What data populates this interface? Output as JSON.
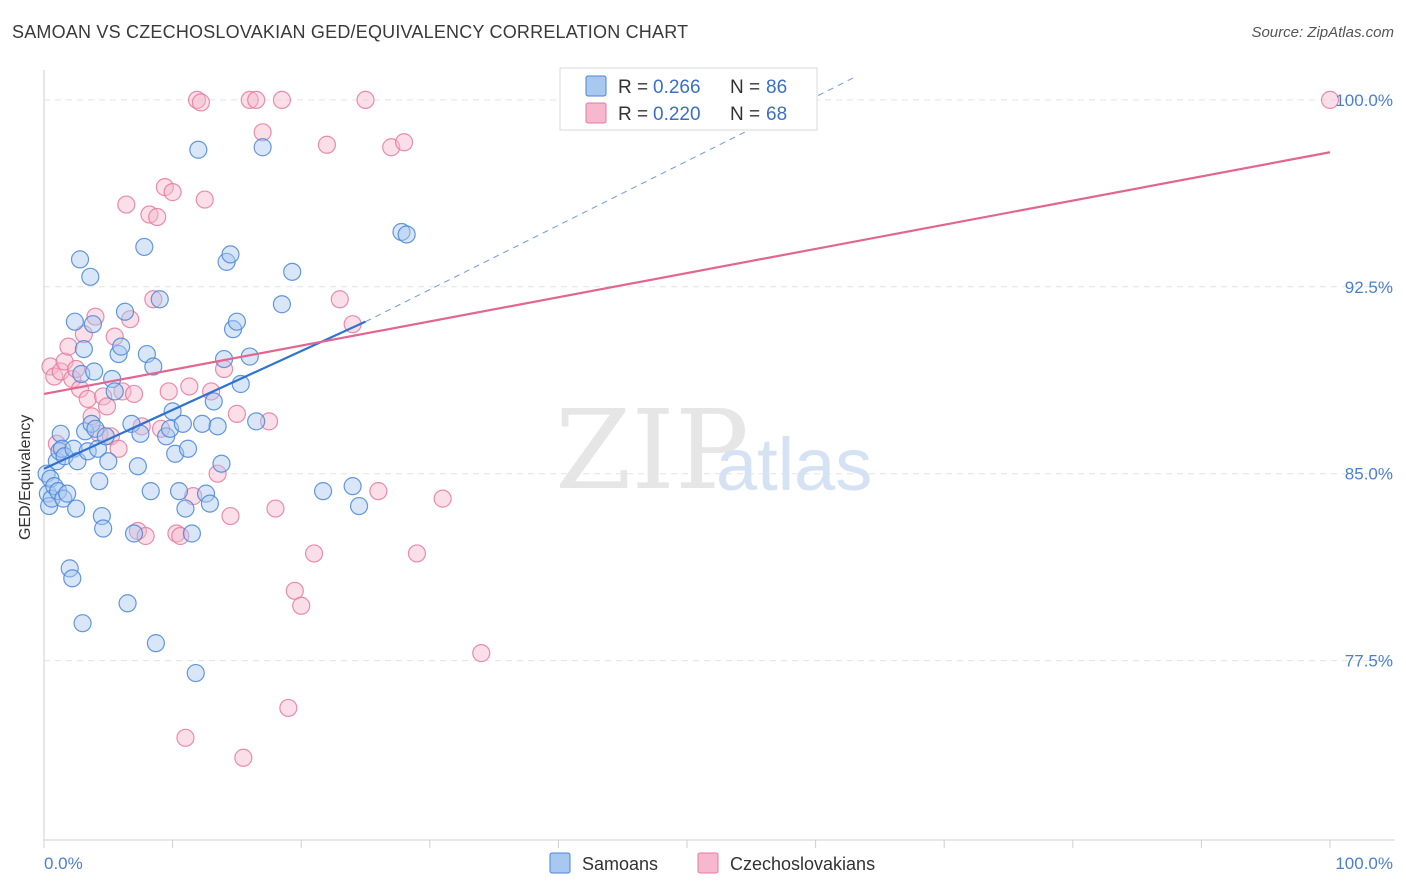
{
  "title": "SAMOAN VS CZECHOSLOVAKIAN GED/EQUIVALENCY CORRELATION CHART",
  "source": "Source: ZipAtlas.com",
  "watermark": {
    "zip": "ZIP",
    "atlas": "atlas"
  },
  "colors": {
    "blue_fill": "#a9c8f0",
    "blue_stroke": "#4a86d8",
    "blue_line": "#2f72cf",
    "pink_fill": "#f5b8cc",
    "pink_stroke": "#e8799d",
    "pink_line": "#e26690",
    "tick_text": "#4a7fd0",
    "grid": "#e3e3e3"
  },
  "legend": {
    "rows": [
      {
        "r_label": "R = ",
        "r_value": "0.266",
        "n_label": "N = ",
        "n_value": "86",
        "series": "blue"
      },
      {
        "r_label": "R = ",
        "r_value": "0.220",
        "n_label": "N = ",
        "n_value": "68",
        "series": "pink"
      }
    ]
  },
  "chart_data": {
    "type": "scatter",
    "title": "SAMOAN VS CZECHOSLOVAKIAN GED/EQUIVALENCY CORRELATION CHART",
    "xlabel": "",
    "ylabel": "GED/Equivalency",
    "xlim": [
      0,
      100
    ],
    "ylim": [
      70.3,
      101.2
    ],
    "x_tick_labels": [
      "0.0%",
      "100.0%"
    ],
    "y_ticks": [
      77.5,
      85.0,
      92.5,
      100.0
    ],
    "y_tick_labels": [
      "77.5%",
      "85.0%",
      "92.5%",
      "100.0%"
    ],
    "grid": true,
    "series": [
      {
        "name": "Samoans",
        "color": "blue",
        "r": 0.266,
        "n": 86,
        "trend": {
          "x0": 0,
          "y0": 85.2,
          "x1": 25,
          "y1": 91.1,
          "dash_to_x": 63,
          "dash_to_y": 100.9
        },
        "points": [
          [
            0.2,
            85.0
          ],
          [
            0.3,
            84.2
          ],
          [
            0.4,
            83.7
          ],
          [
            0.5,
            84.8
          ],
          [
            0.6,
            84.0
          ],
          [
            0.8,
            84.5
          ],
          [
            1.0,
            85.5
          ],
          [
            1.1,
            84.3
          ],
          [
            1.2,
            85.9
          ],
          [
            1.3,
            86.6
          ],
          [
            1.4,
            86.0
          ],
          [
            1.5,
            84.0
          ],
          [
            1.6,
            85.7
          ],
          [
            1.8,
            84.2
          ],
          [
            2.0,
            81.2
          ],
          [
            2.2,
            80.8
          ],
          [
            2.3,
            86.0
          ],
          [
            2.4,
            91.1
          ],
          [
            2.5,
            83.6
          ],
          [
            2.6,
            85.5
          ],
          [
            2.8,
            93.6
          ],
          [
            2.9,
            89.0
          ],
          [
            3.0,
            79.0
          ],
          [
            3.1,
            90.0
          ],
          [
            3.2,
            86.7
          ],
          [
            3.4,
            85.9
          ],
          [
            3.6,
            92.9
          ],
          [
            3.7,
            87.0
          ],
          [
            3.8,
            91.0
          ],
          [
            3.9,
            89.1
          ],
          [
            4.0,
            86.8
          ],
          [
            4.2,
            86.0
          ],
          [
            4.3,
            84.7
          ],
          [
            4.5,
            83.3
          ],
          [
            4.6,
            82.8
          ],
          [
            4.8,
            86.5
          ],
          [
            5.0,
            85.5
          ],
          [
            5.3,
            88.8
          ],
          [
            5.5,
            88.3
          ],
          [
            5.8,
            89.8
          ],
          [
            6.0,
            90.1
          ],
          [
            6.3,
            91.5
          ],
          [
            6.5,
            79.8
          ],
          [
            6.8,
            87.0
          ],
          [
            7.0,
            82.6
          ],
          [
            7.3,
            85.3
          ],
          [
            7.5,
            86.6
          ],
          [
            7.8,
            94.1
          ],
          [
            8.0,
            89.8
          ],
          [
            8.3,
            84.3
          ],
          [
            8.5,
            89.3
          ],
          [
            8.7,
            78.2
          ],
          [
            9.0,
            92.0
          ],
          [
            9.5,
            86.5
          ],
          [
            9.8,
            86.8
          ],
          [
            10.0,
            87.5
          ],
          [
            10.2,
            85.8
          ],
          [
            10.5,
            84.3
          ],
          [
            10.8,
            87.0
          ],
          [
            11.0,
            83.6
          ],
          [
            11.2,
            86.0
          ],
          [
            11.5,
            82.6
          ],
          [
            11.8,
            77.0
          ],
          [
            12.0,
            98.0
          ],
          [
            12.3,
            87.0
          ],
          [
            12.6,
            84.2
          ],
          [
            12.9,
            83.8
          ],
          [
            13.2,
            87.9
          ],
          [
            13.5,
            86.9
          ],
          [
            13.8,
            85.4
          ],
          [
            14.0,
            89.6
          ],
          [
            14.2,
            93.5
          ],
          [
            14.5,
            93.8
          ],
          [
            14.7,
            90.8
          ],
          [
            15.0,
            91.1
          ],
          [
            15.3,
            88.6
          ],
          [
            16.0,
            89.7
          ],
          [
            16.5,
            87.1
          ],
          [
            17.0,
            98.1
          ],
          [
            18.5,
            91.8
          ],
          [
            19.3,
            93.1
          ],
          [
            21.7,
            84.3
          ],
          [
            24.0,
            84.5
          ],
          [
            24.5,
            83.7
          ],
          [
            27.8,
            94.7
          ],
          [
            28.2,
            94.6
          ]
        ]
      },
      {
        "name": "Czechoslovakians",
        "color": "pink",
        "r": 0.22,
        "n": 68,
        "trend": {
          "x0": 0,
          "y0": 88.2,
          "x1": 100,
          "y1": 97.9
        },
        "points": [
          [
            0.5,
            89.3
          ],
          [
            0.8,
            88.9
          ],
          [
            1.0,
            86.2
          ],
          [
            1.3,
            89.1
          ],
          [
            1.6,
            89.5
          ],
          [
            1.9,
            90.1
          ],
          [
            2.2,
            88.8
          ],
          [
            2.5,
            89.2
          ],
          [
            2.8,
            88.4
          ],
          [
            3.1,
            90.6
          ],
          [
            3.4,
            88.0
          ],
          [
            3.7,
            87.3
          ],
          [
            4.0,
            91.3
          ],
          [
            4.3,
            86.6
          ],
          [
            4.6,
            88.1
          ],
          [
            4.9,
            87.7
          ],
          [
            5.2,
            86.5
          ],
          [
            5.5,
            90.5
          ],
          [
            5.8,
            86.0
          ],
          [
            6.1,
            88.3
          ],
          [
            6.4,
            95.8
          ],
          [
            6.7,
            91.2
          ],
          [
            7.0,
            88.2
          ],
          [
            7.3,
            82.7
          ],
          [
            7.6,
            86.9
          ],
          [
            7.9,
            82.5
          ],
          [
            8.2,
            95.4
          ],
          [
            8.5,
            92.0
          ],
          [
            8.8,
            95.3
          ],
          [
            9.1,
            86.8
          ],
          [
            9.4,
            96.5
          ],
          [
            9.7,
            88.3
          ],
          [
            10.0,
            96.3
          ],
          [
            10.3,
            82.6
          ],
          [
            10.6,
            82.5
          ],
          [
            11.0,
            74.4
          ],
          [
            11.3,
            88.5
          ],
          [
            11.6,
            84.1
          ],
          [
            11.9,
            100.0
          ],
          [
            12.2,
            99.9
          ],
          [
            12.5,
            96.0
          ],
          [
            13.0,
            88.3
          ],
          [
            13.5,
            85.0
          ],
          [
            14.0,
            89.2
          ],
          [
            14.5,
            83.3
          ],
          [
            15.0,
            87.4
          ],
          [
            15.5,
            73.6
          ],
          [
            16.0,
            100.0
          ],
          [
            16.5,
            100.0
          ],
          [
            17.0,
            98.7
          ],
          [
            17.5,
            87.1
          ],
          [
            18.0,
            83.6
          ],
          [
            18.5,
            100.0
          ],
          [
            19.0,
            75.6
          ],
          [
            19.5,
            80.3
          ],
          [
            20.0,
            79.7
          ],
          [
            21.0,
            81.8
          ],
          [
            22.0,
            98.2
          ],
          [
            23.0,
            92.0
          ],
          [
            24.0,
            91.0
          ],
          [
            25.0,
            100.0
          ],
          [
            26.0,
            84.3
          ],
          [
            27.0,
            98.1
          ],
          [
            28.0,
            98.3
          ],
          [
            29.0,
            81.8
          ],
          [
            31.0,
            84.0
          ],
          [
            34.0,
            77.8
          ],
          [
            100.0,
            100.0
          ]
        ]
      }
    ]
  },
  "bottom_legend": {
    "items": [
      {
        "label": "Samoans",
        "series": "blue"
      },
      {
        "label": "Czechoslovakians",
        "series": "pink"
      }
    ]
  }
}
